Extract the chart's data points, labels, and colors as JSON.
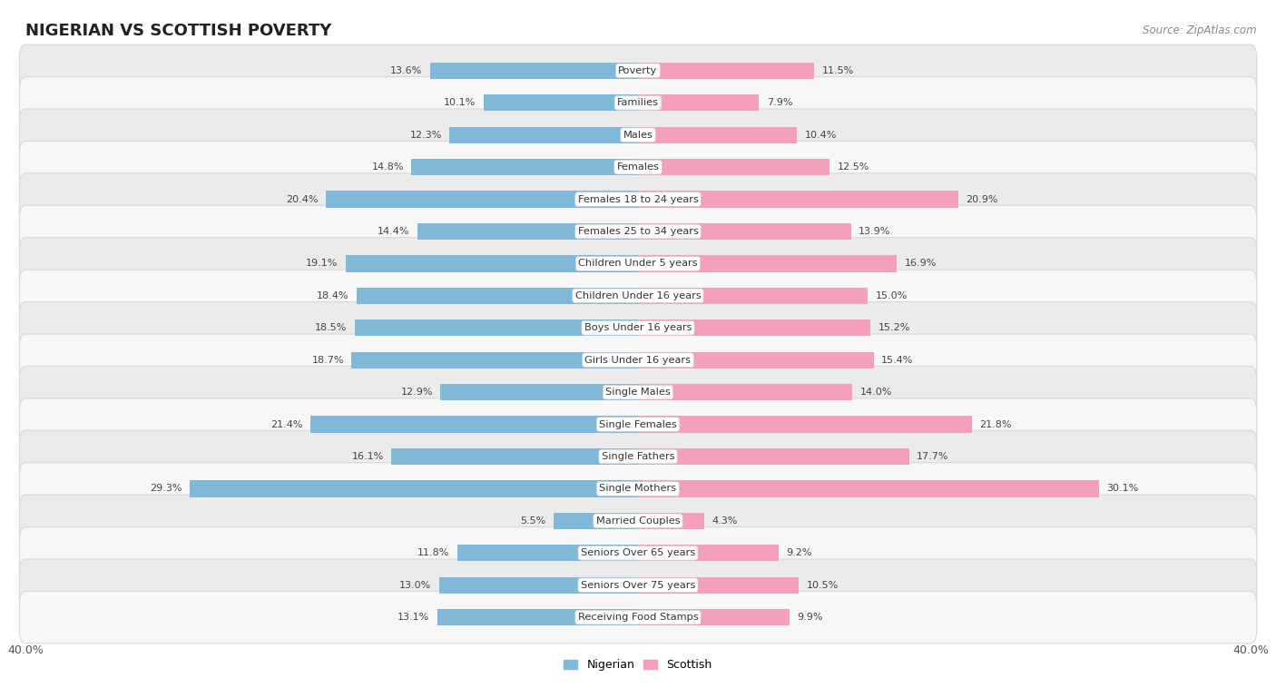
{
  "title": "NIGERIAN VS SCOTTISH POVERTY",
  "source": "Source: ZipAtlas.com",
  "categories": [
    "Poverty",
    "Families",
    "Males",
    "Females",
    "Females 18 to 24 years",
    "Females 25 to 34 years",
    "Children Under 5 years",
    "Children Under 16 years",
    "Boys Under 16 years",
    "Girls Under 16 years",
    "Single Males",
    "Single Females",
    "Single Fathers",
    "Single Mothers",
    "Married Couples",
    "Seniors Over 65 years",
    "Seniors Over 75 years",
    "Receiving Food Stamps"
  ],
  "nigerian": [
    13.6,
    10.1,
    12.3,
    14.8,
    20.4,
    14.4,
    19.1,
    18.4,
    18.5,
    18.7,
    12.9,
    21.4,
    16.1,
    29.3,
    5.5,
    11.8,
    13.0,
    13.1
  ],
  "scottish": [
    11.5,
    7.9,
    10.4,
    12.5,
    20.9,
    13.9,
    16.9,
    15.0,
    15.2,
    15.4,
    14.0,
    21.8,
    17.7,
    30.1,
    4.3,
    9.2,
    10.5,
    9.9
  ],
  "nigerian_color": "#7fb8d8",
  "scottish_color": "#f4a0bc",
  "background_row_alt": "#ebebeb",
  "background_row_normal": "#f7f7f7",
  "row_border_color": "#d8d8d8",
  "axis_max": 40.0,
  "bar_height": 0.52,
  "title_fontsize": 13,
  "label_fontsize": 8.2,
  "value_fontsize": 8.0,
  "legend_fontsize": 9
}
